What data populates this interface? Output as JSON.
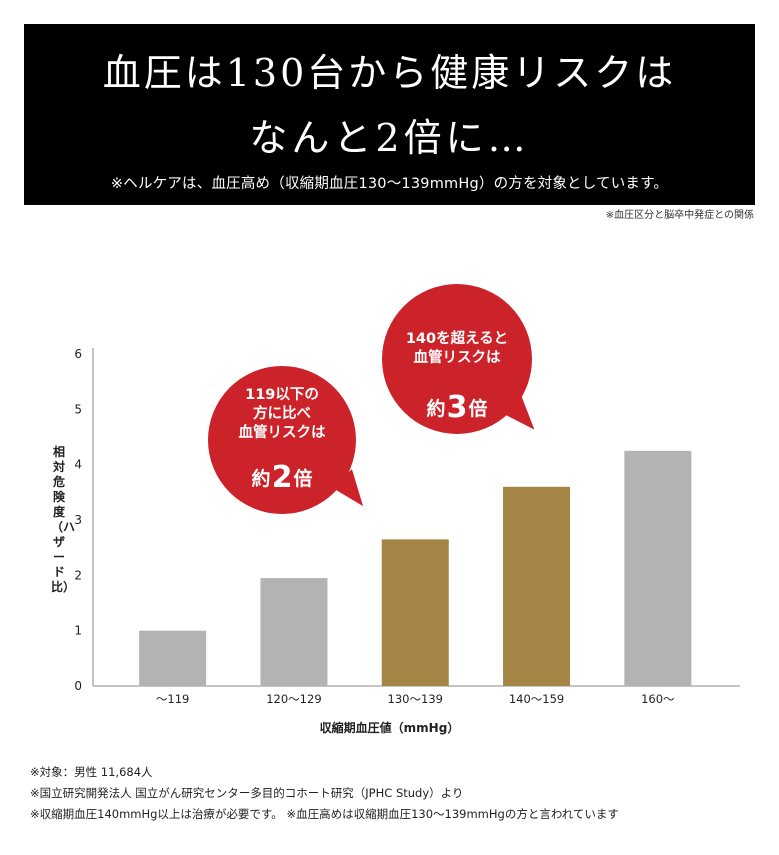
{
  "header": {
    "line1": "血圧は130台から健康リスクは",
    "line2": "なんと2倍に…",
    "note": "※ヘルケアは、血圧高め（収縮期血圧130～139mmHg）の方を対象としています。"
  },
  "source_note": "※血圧区分と脳卒中発症との関係",
  "callouts": [
    {
      "text": "119以下の\n方に比べ\n血管リスクは",
      "prefix": "約",
      "number": "2",
      "suffix": "倍"
    },
    {
      "text": "140を超えると\n血管リスクは",
      "prefix": "約",
      "number": "3",
      "suffix": "倍"
    }
  ],
  "chart_data": {
    "type": "bar",
    "categories": [
      "～119",
      "120～129",
      "130～139",
      "140～159",
      "160～"
    ],
    "values": [
      1.0,
      1.95,
      2.65,
      3.6,
      4.25
    ],
    "bar_colors": [
      "#b3b3b3",
      "#b3b3b3",
      "#a48546",
      "#a48546",
      "#b3b3b3"
    ],
    "ylim": [
      0,
      6
    ],
    "yticks": [
      0,
      1,
      2,
      3,
      4,
      5,
      6
    ],
    "ylabel": "相対危険度（ハザード比）",
    "xlabel": "収縮期血圧値（mmHg）",
    "grid": false
  },
  "footnotes": [
    "※対象：男性 11,684人",
    "※国立研究開発法人 国立がん研究センター多目的コホート研究（JPHC Study）より",
    "※収縮期血圧140mmHg以上は治療が必要です。 ※血圧高めは収縮期血圧130～139mmHgの方と言われています"
  ]
}
